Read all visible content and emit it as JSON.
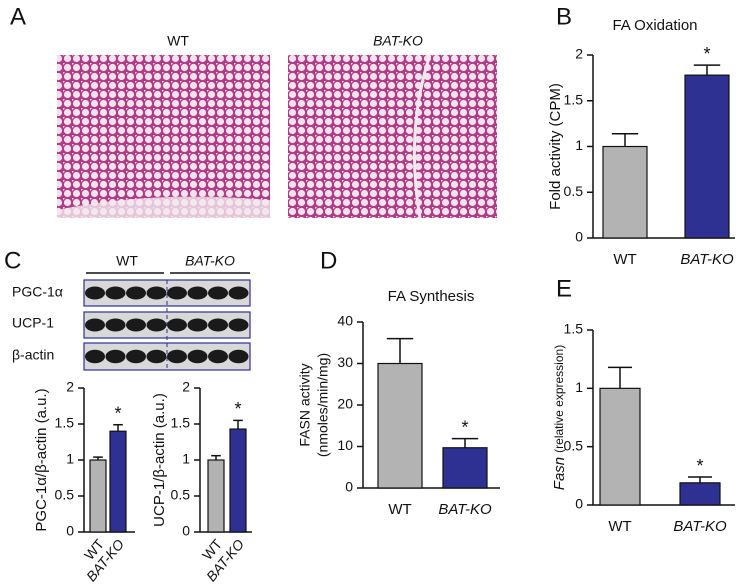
{
  "panel_labels": [
    "A",
    "B",
    "C",
    "D",
    "E"
  ],
  "histology": {
    "labels": [
      "WT",
      "BAT-KO"
    ]
  },
  "blot": {
    "groups": [
      "WT",
      "BAT-KO"
    ],
    "rows": [
      "PGC-1α",
      "UCP-1",
      "β-actin"
    ]
  },
  "chart_data": [
    {
      "type": "bar",
      "title": "FA Oxidation",
      "ylabel": "Fold activity (CPM)",
      "categories": [
        "WT",
        "BAT-KO"
      ],
      "values": [
        1.0,
        1.78
      ],
      "errors": [
        0.14,
        0.11
      ],
      "colors": [
        "#b3b3b3",
        "#2e3192"
      ],
      "significance": [
        null,
        "*"
      ],
      "ylim": [
        0,
        2
      ],
      "yticks": [
        0,
        0.5,
        1,
        1.5,
        2
      ]
    },
    {
      "type": "bar",
      "ylabel": "PGC-1α/β-actin (a.u.)",
      "categories": [
        "WT",
        "BAT-KO"
      ],
      "values": [
        1.0,
        1.4
      ],
      "errors": [
        0.04,
        0.09
      ],
      "colors": [
        "#b3b3b3",
        "#2e3192"
      ],
      "significance": [
        null,
        "*"
      ],
      "ylim": [
        0,
        2
      ],
      "yticks": [
        0,
        0.5,
        1,
        1.5,
        2
      ]
    },
    {
      "type": "bar",
      "ylabel": "UCP-1/β-actin (a.u.)",
      "categories": [
        "WT",
        "BAT-KO"
      ],
      "values": [
        1.0,
        1.43
      ],
      "errors": [
        0.06,
        0.12
      ],
      "colors": [
        "#b3b3b3",
        "#2e3192"
      ],
      "significance": [
        null,
        "*"
      ],
      "ylim": [
        0,
        2
      ],
      "yticks": [
        0,
        0.5,
        1,
        1.5,
        2
      ]
    },
    {
      "type": "bar",
      "title": "FA Synthesis",
      "ylabel": [
        "FASN activity",
        "(nmoles/min/mg)"
      ],
      "categories": [
        "WT",
        "BAT-KO"
      ],
      "values": [
        30,
        9.7
      ],
      "errors": [
        6,
        2.2
      ],
      "colors": [
        "#b3b3b3",
        "#2e3192"
      ],
      "significance": [
        null,
        "*"
      ],
      "ylim": [
        0,
        40
      ],
      "yticks": [
        0,
        10,
        20,
        30,
        40
      ]
    },
    {
      "type": "bar",
      "ylabel": [
        "Fasn",
        "(relative expression)"
      ],
      "categories": [
        "WT",
        "BAT-KO"
      ],
      "values": [
        1.0,
        0.19
      ],
      "errors": [
        0.18,
        0.05
      ],
      "colors": [
        "#b3b3b3",
        "#2e3192"
      ],
      "significance": [
        null,
        "*"
      ],
      "ylim": [
        0,
        1.5
      ],
      "yticks": [
        0,
        0.5,
        1,
        1.5
      ]
    }
  ]
}
